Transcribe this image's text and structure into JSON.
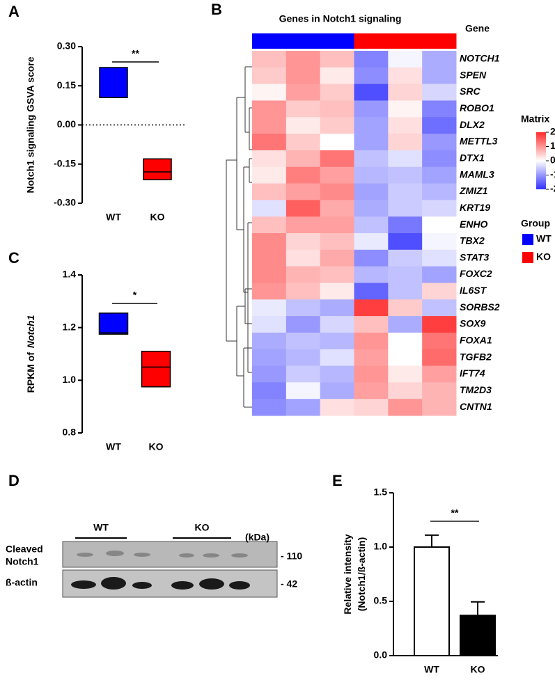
{
  "chart_data": [
    {
      "type": "box",
      "panel_label": "A",
      "ylabel": "Notch1 signaling GSVA score",
      "categories": [
        "WT",
        "KO"
      ],
      "colors": [
        "#0000ff",
        "#ff0000"
      ],
      "low": [
        0.105,
        -0.21
      ],
      "high": [
        0.22,
        -0.13
      ],
      "median": [
        0.105,
        -0.18
      ],
      "ylim": [
        -0.3,
        0.3
      ],
      "yticks": [
        {
          "value": 0.3,
          "label": "0.30"
        },
        {
          "value": 0.15,
          "label": "0.15"
        },
        {
          "value": 0,
          "label": "0.00"
        },
        {
          "value": -0.15,
          "label": "-0.15"
        },
        {
          "value": -0.3,
          "label": "-0.30"
        }
      ],
      "reference_line": 0,
      "significance": "**"
    },
    {
      "type": "heatmap",
      "panel_label": "B",
      "title": "Genes in Notch1 signaling",
      "row_title": "Gene",
      "rows": [
        "NOTCH1",
        "SPEN",
        "SRC",
        "ROBO1",
        "DLX2",
        "METTL3",
        "DTX1",
        "MAML3",
        "ZMIZ1",
        "KRT19",
        "ENHO",
        "TBX2",
        "STAT3",
        "FOXC2",
        "IL6ST",
        "SORBS2",
        "SOX9",
        "FOXA1",
        "TGFB2",
        "IFT74",
        "TM2D3",
        "CNTN1"
      ],
      "values": [
        [
          0.6,
          1.0,
          0.6,
          -1.2,
          -0.1,
          -0.8
        ],
        [
          0.5,
          1.0,
          0.2,
          -1.1,
          0.3,
          -0.8
        ],
        [
          0.1,
          0.9,
          0.5,
          -1.7,
          0.4,
          -0.4
        ],
        [
          1.0,
          0.5,
          0.6,
          -1.0,
          0.1,
          -1.2
        ],
        [
          1.0,
          0.2,
          0.5,
          -0.9,
          0.3,
          -1.4
        ],
        [
          1.3,
          0.5,
          0.0,
          -0.9,
          0.4,
          -1.0
        ],
        [
          0.3,
          0.7,
          1.3,
          -0.6,
          -0.3,
          -1.1
        ],
        [
          0.2,
          1.2,
          0.9,
          -0.7,
          -0.6,
          -0.9
        ],
        [
          0.6,
          0.9,
          1.1,
          -0.9,
          -0.5,
          -0.7
        ],
        [
          -0.3,
          1.5,
          0.8,
          -0.8,
          -0.5,
          -0.4
        ],
        [
          0.6,
          0.9,
          0.9,
          -0.6,
          -1.3,
          0.0
        ],
        [
          1.1,
          0.4,
          0.6,
          -0.2,
          -1.7,
          -0.1
        ],
        [
          1.1,
          0.3,
          0.8,
          -1.1,
          -0.5,
          -0.3
        ],
        [
          1.1,
          0.7,
          0.6,
          -0.7,
          -0.6,
          -0.9
        ],
        [
          1.0,
          0.6,
          0.2,
          -1.5,
          -0.6,
          0.4
        ],
        [
          -0.2,
          -0.6,
          -0.8,
          1.8,
          0.5,
          -0.6
        ],
        [
          -0.3,
          -1.0,
          -0.4,
          0.6,
          -0.8,
          1.8
        ],
        [
          -0.8,
          -0.6,
          -0.7,
          1.0,
          0.0,
          1.3
        ],
        [
          -0.9,
          -0.7,
          -0.3,
          0.9,
          0.0,
          1.4
        ],
        [
          -1.0,
          -0.5,
          -0.7,
          1.0,
          0.2,
          0.9
        ],
        [
          -1.2,
          -0.1,
          -0.8,
          0.9,
          0.4,
          0.7
        ],
        [
          -1.1,
          -0.9,
          0.3,
          0.4,
          1.0,
          0.7
        ]
      ],
      "groups": [
        {
          "name": "WT",
          "color": "#0000ff"
        },
        {
          "name": "KO",
          "color": "#ff0000"
        }
      ],
      "group_of_column": [
        0,
        0,
        0,
        1,
        1,
        1
      ],
      "legend_title": "Group",
      "colorbar_title": "Matrix",
      "zlim": [
        -2,
        2
      ],
      "zticks": [
        2,
        1,
        0,
        -1,
        -2
      ],
      "colors": [
        "#3030ff",
        "#ffffff",
        "#ff2a2a"
      ],
      "highlight_rows": [
        0
      ],
      "highlight_color": "#ff0000"
    },
    {
      "type": "box",
      "panel_label": "C",
      "ylabel": [
        "RPKM  of",
        "Notch1"
      ],
      "categories": [
        "WT",
        "KO"
      ],
      "colors": [
        "#0000ff",
        "#ff0000"
      ],
      "low": [
        1.175,
        0.975
      ],
      "high": [
        1.255,
        1.11
      ],
      "median": [
        1.18,
        1.05
      ],
      "ylim": [
        0.8,
        1.4
      ],
      "yticks": [
        {
          "value": 0.8,
          "label": "0.8"
        },
        {
          "value": 1.0,
          "label": "1.0"
        },
        {
          "value": 1.2,
          "label": "1.2"
        },
        {
          "value": 1.4,
          "label": "1.4"
        }
      ],
      "significance": "*"
    },
    {
      "type": "bar",
      "panel_label": "E",
      "ylabel": [
        "Relative intensity",
        "(Notch1/ß-actin)"
      ],
      "categories": [
        "WT",
        "KO"
      ],
      "values": [
        1.0,
        0.37
      ],
      "errors": [
        0.11,
        0.125
      ],
      "colors": [
        "#ffffff",
        "#000000"
      ],
      "ylim": [
        0,
        1.5
      ],
      "yticks": [
        {
          "value": 0,
          "label": "0.0"
        },
        {
          "value": 0.5,
          "label": "0.5"
        },
        {
          "value": 1.0,
          "label": "1.0"
        },
        {
          "value": 1.5,
          "label": "1.5"
        }
      ],
      "significance": "**"
    }
  ],
  "blot": {
    "panel_label": "D",
    "groups": [
      "WT",
      "KO"
    ],
    "unit": "(kDa)",
    "rows": [
      {
        "label": [
          "Cleaved",
          "Notch1"
        ],
        "marker": "- 110"
      },
      {
        "label": [
          "ß-actin"
        ],
        "marker": "- 42"
      }
    ]
  }
}
